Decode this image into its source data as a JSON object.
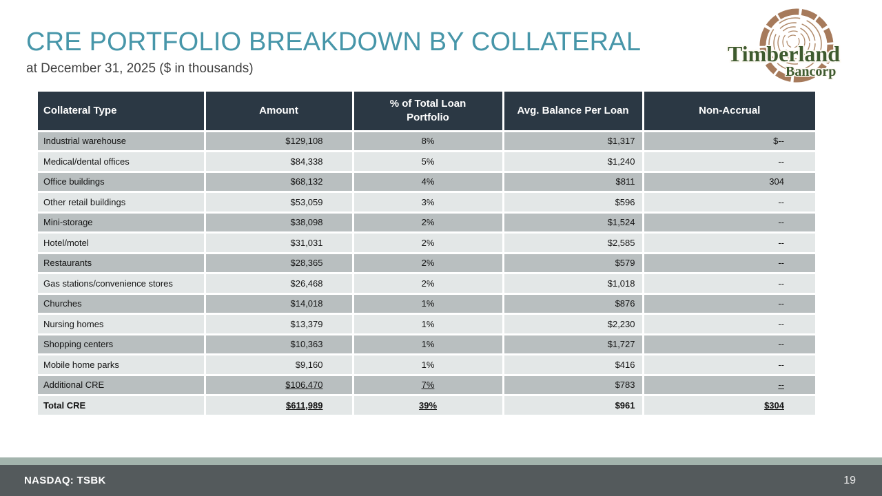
{
  "slide": {
    "title": "CRE PORTFOLIO BREAKDOWN BY COLLATERAL",
    "subtitle": "at December 31, 2025 ($ in thousands)"
  },
  "logo": {
    "line1": "Timberland",
    "line2": "Bancorp"
  },
  "footer": {
    "ticker": "NASDAQ: TSBK",
    "page_number": "19"
  },
  "colors": {
    "title_teal": "#4796a9",
    "header_bg": "#2b3844",
    "row_dark": "#b9bfc0",
    "row_light": "#e3e7e7",
    "accent_strip": "#a3b4ad",
    "footer_bg": "#545a5c",
    "logo_brown": "#a67a5b",
    "logo_ring_brown": "#b08a6a",
    "logo_green": "#3e5a2e"
  },
  "chart_data": {
    "type": "table",
    "title": "CRE PORTFOLIO BREAKDOWN BY COLLATERAL",
    "subtitle": "at December 31, 2025 ($ in thousands)",
    "headers": [
      "Collateral Type",
      "Amount",
      "% of Total Loan Portfolio",
      "Avg. Balance Per Loan",
      "Non-Accrual"
    ],
    "rows": [
      {
        "collateral_type": "Industrial warehouse",
        "amount": "$129,108",
        "pct_of_total": "8%",
        "avg_balance": "$1,317",
        "non_accrual": "$--",
        "bold": false,
        "underline_values": false
      },
      {
        "collateral_type": "Medical/dental offices",
        "amount": "$84,338",
        "pct_of_total": "5%",
        "avg_balance": "$1,240",
        "non_accrual": "--",
        "bold": false,
        "underline_values": false
      },
      {
        "collateral_type": "Office buildings",
        "amount": "$68,132",
        "pct_of_total": "4%",
        "avg_balance": "$811",
        "non_accrual": "304",
        "bold": false,
        "underline_values": false
      },
      {
        "collateral_type": "Other retail buildings",
        "amount": "$53,059",
        "pct_of_total": "3%",
        "avg_balance": "$596",
        "non_accrual": "--",
        "bold": false,
        "underline_values": false
      },
      {
        "collateral_type": "Mini-storage",
        "amount": "$38,098",
        "pct_of_total": "2%",
        "avg_balance": "$1,524",
        "non_accrual": "--",
        "bold": false,
        "underline_values": false
      },
      {
        "collateral_type": "Hotel/motel",
        "amount": "$31,031",
        "pct_of_total": "2%",
        "avg_balance": "$2,585",
        "non_accrual": "--",
        "bold": false,
        "underline_values": false
      },
      {
        "collateral_type": "Restaurants",
        "amount": "$28,365",
        "pct_of_total": "2%",
        "avg_balance": "$579",
        "non_accrual": "--",
        "bold": false,
        "underline_values": false
      },
      {
        "collateral_type": "Gas stations/convenience stores",
        "amount": "$26,468",
        "pct_of_total": "2%",
        "avg_balance": "$1,018",
        "non_accrual": "--",
        "bold": false,
        "underline_values": false
      },
      {
        "collateral_type": "Churches",
        "amount": "$14,018",
        "pct_of_total": "1%",
        "avg_balance": "$876",
        "non_accrual": "--",
        "bold": false,
        "underline_values": false
      },
      {
        "collateral_type": "Nursing homes",
        "amount": "$13,379",
        "pct_of_total": "1%",
        "avg_balance": "$2,230",
        "non_accrual": "--",
        "bold": false,
        "underline_values": false
      },
      {
        "collateral_type": "Shopping centers",
        "amount": "$10,363",
        "pct_of_total": "1%",
        "avg_balance": "$1,727",
        "non_accrual": "--",
        "bold": false,
        "underline_values": false
      },
      {
        "collateral_type": "Mobile home parks",
        "amount": "$9,160",
        "pct_of_total": "1%",
        "avg_balance": "$416",
        "non_accrual": "--",
        "bold": false,
        "underline_values": false
      },
      {
        "collateral_type": "Additional CRE",
        "amount": "$106,470",
        "pct_of_total": "7%",
        "avg_balance": "$783",
        "non_accrual": "--",
        "bold": false,
        "underline_values": true
      },
      {
        "collateral_type": "Total CRE",
        "amount": "$611,989",
        "pct_of_total": "39%",
        "avg_balance": "$961",
        "non_accrual": "$304",
        "bold": true,
        "underline_values": true
      }
    ]
  }
}
